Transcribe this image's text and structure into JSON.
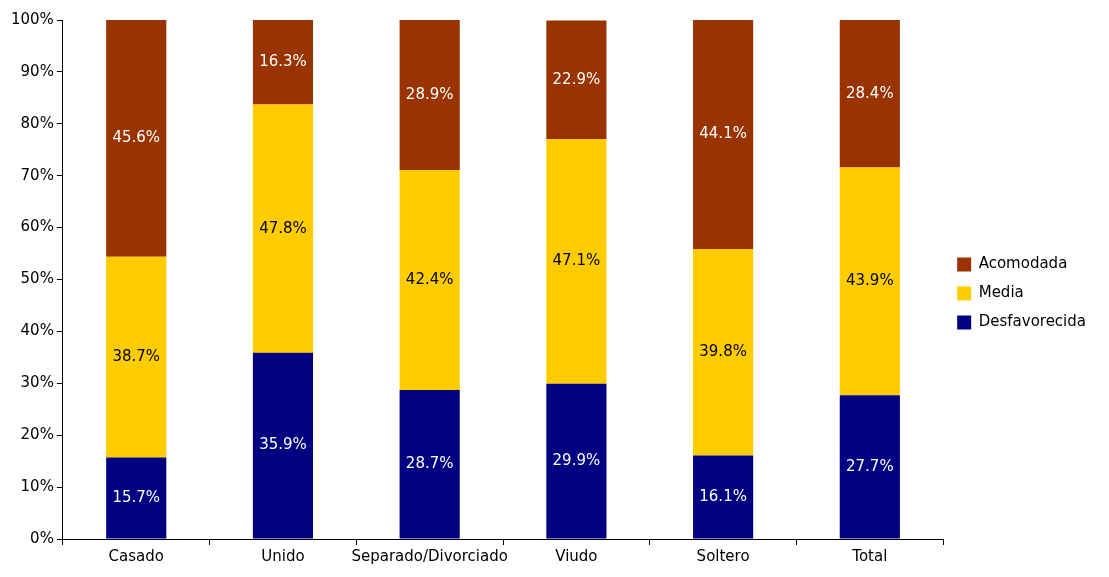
{
  "chart_data": {
    "type": "bar",
    "stacked": true,
    "categories": [
      "Casado",
      "Unido",
      "Separado/Divorciado",
      "Viudo",
      "Soltero",
      "Total"
    ],
    "series": [
      {
        "name": "Desfavorecida",
        "color": "#000080",
        "values": [
          15.7,
          35.9,
          28.7,
          29.9,
          16.1,
          27.7
        ],
        "value_labels": [
          "15.7%",
          "35.9%",
          "28.7%",
          "29.9%",
          "16.1%",
          "27.7%"
        ]
      },
      {
        "name": "Media",
        "color": "#ffcc00",
        "values": [
          38.7,
          47.8,
          42.4,
          47.1,
          39.8,
          43.9
        ],
        "value_labels": [
          "38.7%",
          "47.8%",
          "42.4%",
          "47.1%",
          "39.8%",
          "43.9%"
        ]
      },
      {
        "name": "Acomodada",
        "color": "#993300",
        "values": [
          45.6,
          16.3,
          28.9,
          22.9,
          44.1,
          28.4
        ],
        "value_labels": [
          "45.6%",
          "16.3%",
          "28.9%",
          "22.9%",
          "44.1%",
          "28.4%"
        ]
      }
    ],
    "ylim": [
      0,
      100
    ],
    "yticks": [
      {
        "value": 0,
        "label": "0%"
      },
      {
        "value": 10,
        "label": "10%"
      },
      {
        "value": 20,
        "label": "20%"
      },
      {
        "value": 30,
        "label": "30%"
      },
      {
        "value": 40,
        "label": "40%"
      },
      {
        "value": 50,
        "label": "50%"
      },
      {
        "value": 60,
        "label": "60%"
      },
      {
        "value": 70,
        "label": "70%"
      },
      {
        "value": 80,
        "label": "80%"
      },
      {
        "value": 90,
        "label": "90%"
      },
      {
        "value": 100,
        "label": "100%"
      }
    ],
    "grid": false,
    "legend": "right"
  }
}
